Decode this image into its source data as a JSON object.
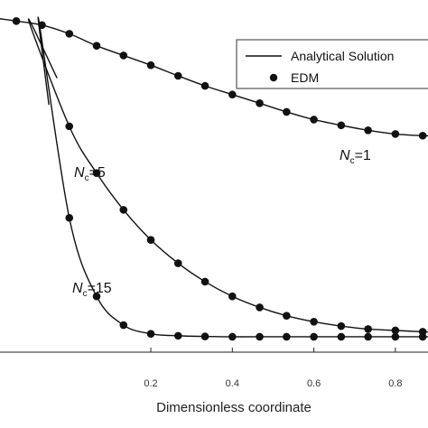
{
  "chart_data": {
    "type": "line",
    "xlabel": "Dimensionless coordinate",
    "ylabel": "",
    "xlim": [
      -0.17,
      0.88
    ],
    "ylim": [
      0,
      1
    ],
    "x_ticks": [
      0.2,
      0.4,
      0.6,
      0.8
    ],
    "x_tick_labels": [
      "0.2",
      "0.4",
      "0.6",
      "0.8"
    ],
    "grid": false,
    "legend": {
      "placement": "top-right",
      "entries": [
        {
          "label": "Analytical Solution",
          "marker": "line"
        },
        {
          "label": "EDM",
          "marker": "dot"
        }
      ]
    },
    "series": [
      {
        "label_main": "N",
        "label_sub": "c",
        "label_rest": "=1",
        "edm_x": [
          -0.13,
          -0.067,
          0.0,
          0.067,
          0.133,
          0.2,
          0.267,
          0.333,
          0.4,
          0.467,
          0.533,
          0.6,
          0.667,
          0.733,
          0.8,
          0.867
        ],
        "edm_y": [
          0.991,
          0.979,
          0.953,
          0.917,
          0.888,
          0.859,
          0.827,
          0.797,
          0.771,
          0.745,
          0.719,
          0.696,
          0.679,
          0.664,
          0.653,
          0.648
        ]
      },
      {
        "label_main": "N",
        "label_sub": "c",
        "label_rest": "=5",
        "edm_x": [
          0.0,
          0.067,
          0.133,
          0.2,
          0.267,
          0.333,
          0.4,
          0.467,
          0.533,
          0.6,
          0.667,
          0.733,
          0.8,
          0.867
        ],
        "edm_y": [
          0.676,
          0.536,
          0.426,
          0.336,
          0.266,
          0.211,
          0.167,
          0.134,
          0.109,
          0.091,
          0.078,
          0.069,
          0.065,
          0.061
        ]
      },
      {
        "label_main": "N",
        "label_sub": "c",
        "label_rest": "=15",
        "edm_x": [
          0.0,
          0.067,
          0.133,
          0.2,
          0.267,
          0.333,
          0.4,
          0.467,
          0.533,
          0.6,
          0.667,
          0.733,
          0.8,
          0.867
        ],
        "edm_y": [
          0.402,
          0.167,
          0.081,
          0.055,
          0.049,
          0.047,
          0.046,
          0.046,
          0.046,
          0.046,
          0.046,
          0.046,
          0.046,
          0.046
        ]
      }
    ]
  }
}
